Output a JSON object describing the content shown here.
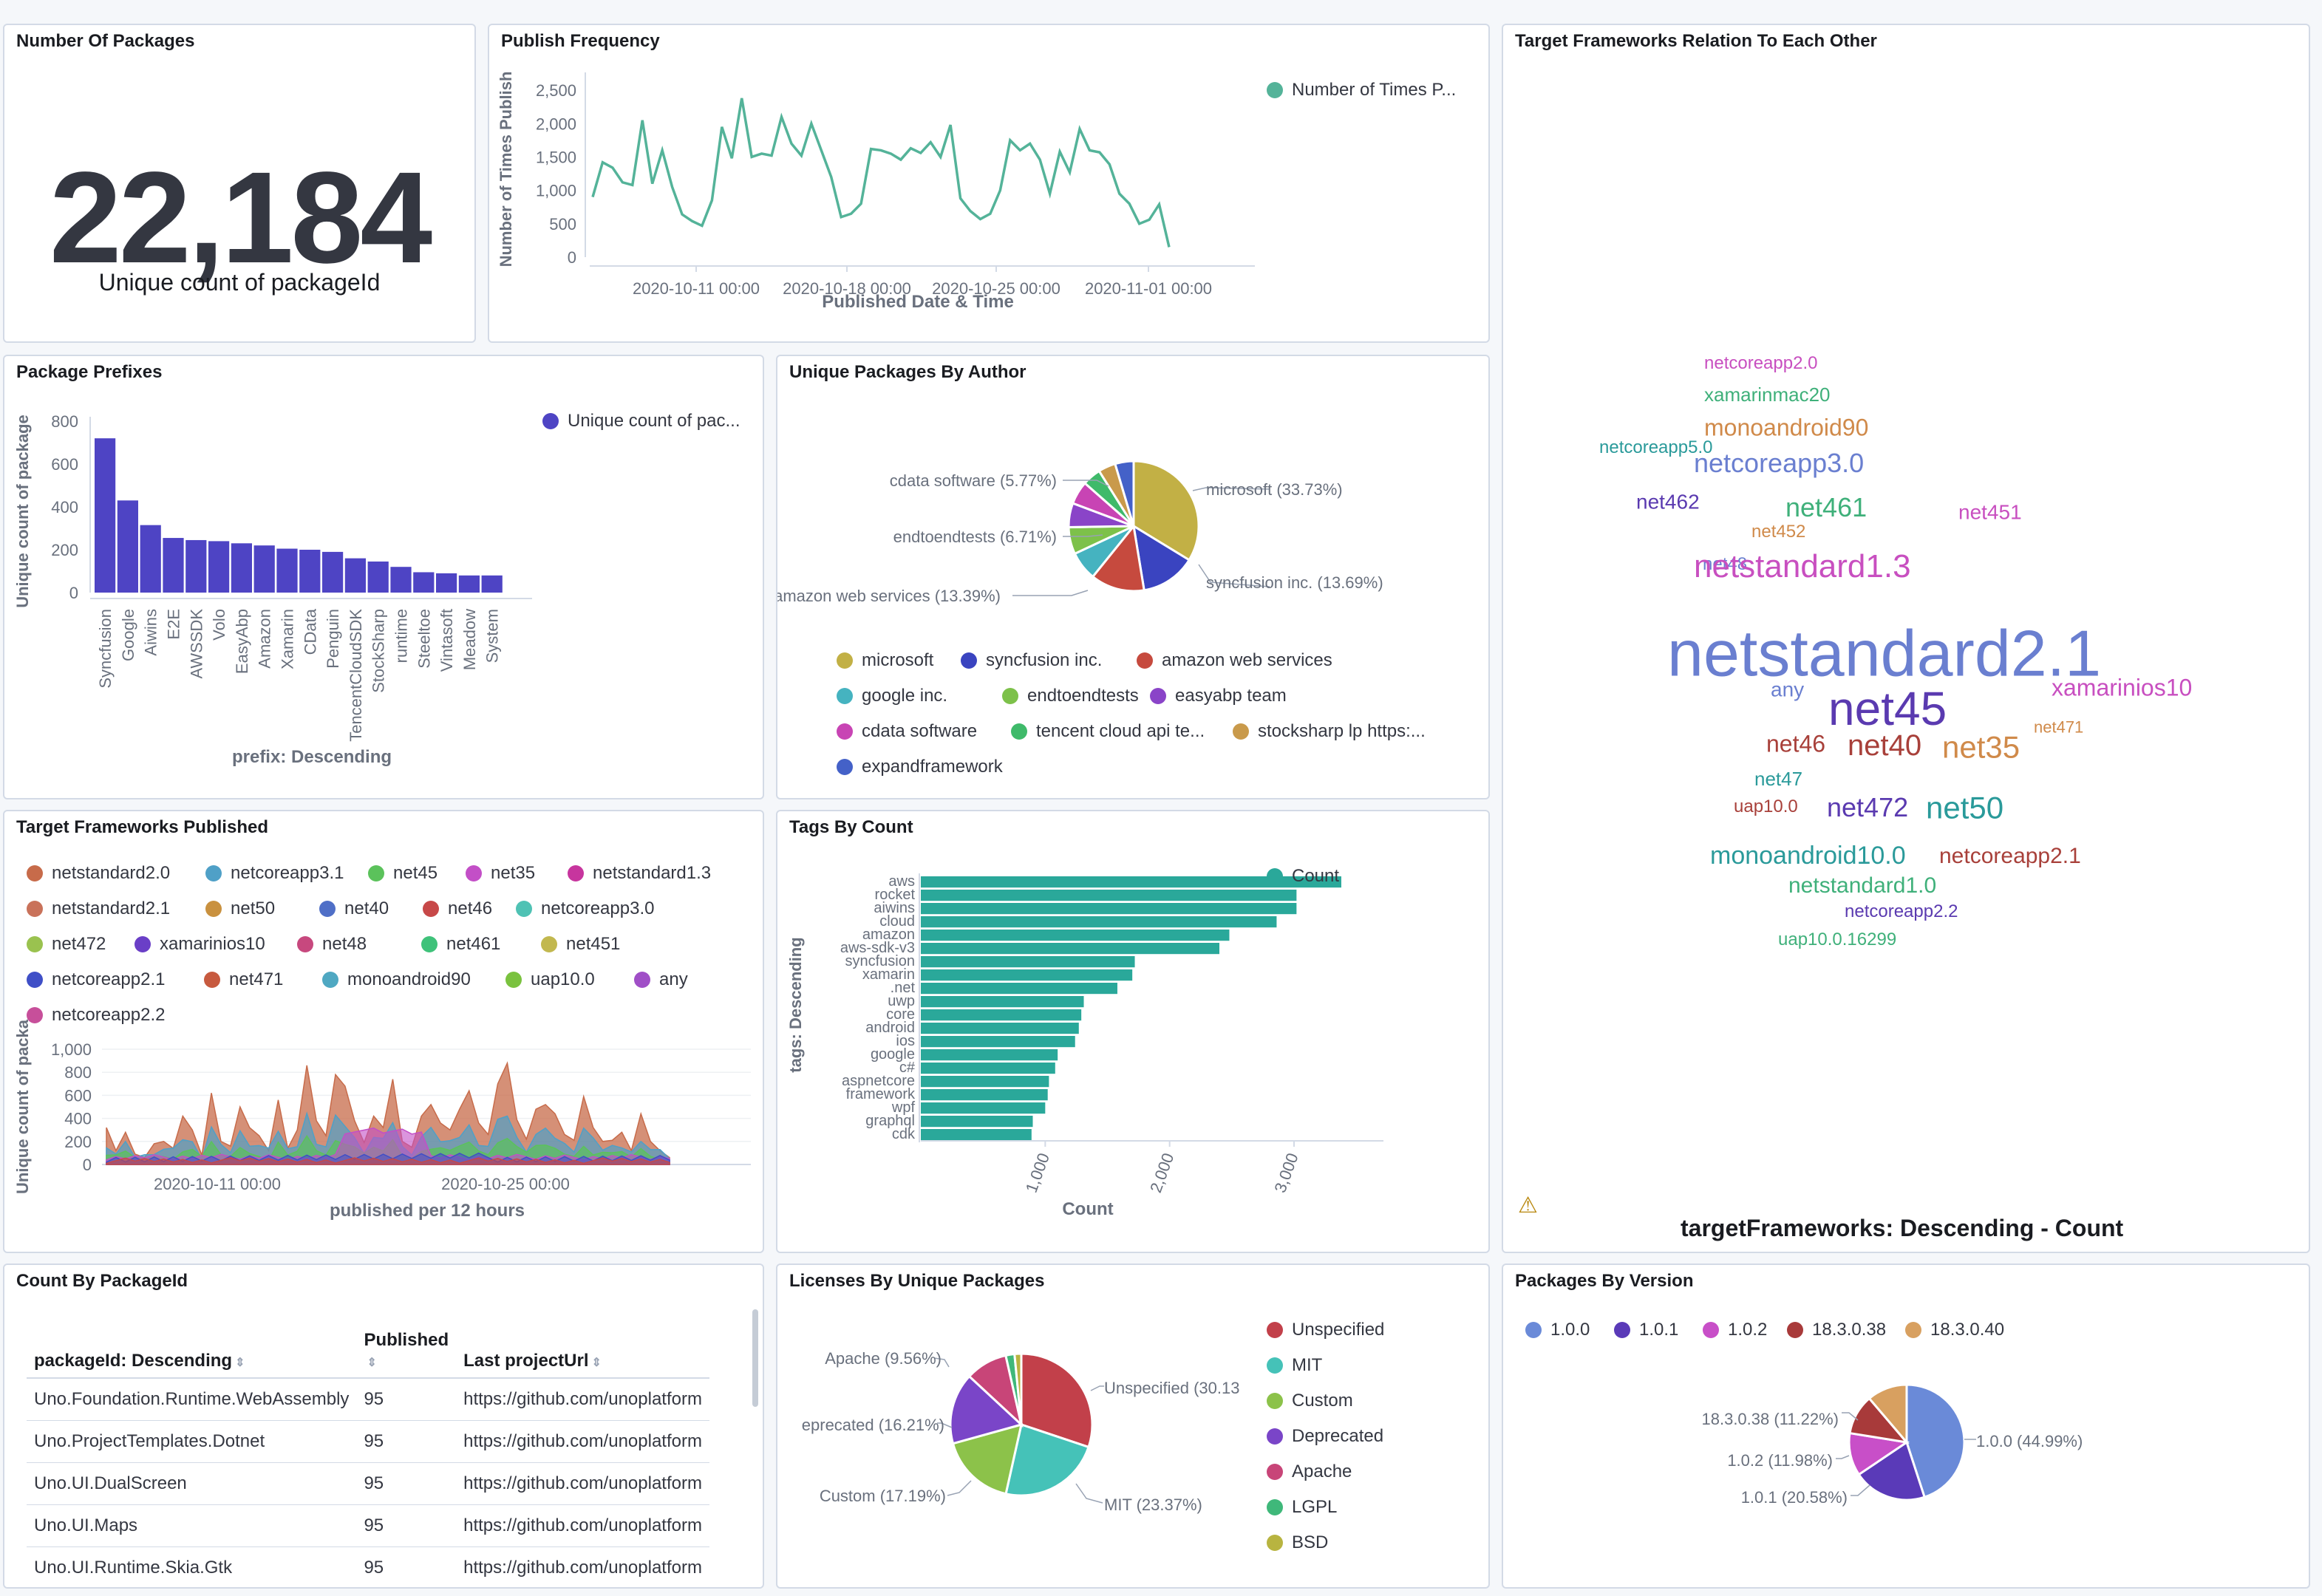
{
  "metric": {
    "title": "Number Of Packages",
    "value": "22,184",
    "label": "Unique count of packageId"
  },
  "publish": {
    "title": "Publish Frequency",
    "legend": "Number of Times P...",
    "ylabel": "Number of Times Publish",
    "xlabel": "Published Date & Time",
    "yticks": [
      "0",
      "500",
      "1,000",
      "1,500",
      "2,000",
      "2,500"
    ],
    "xticks": [
      "2020-10-11 00:00",
      "2020-10-18 00:00",
      "2020-10-25 00:00",
      "2020-11-01 00:00"
    ],
    "color": "#54b399"
  },
  "prefixes": {
    "title": "Package Prefixes",
    "legend": "Unique count of pac...",
    "ylabel": "Unique count of package",
    "xlabel": "prefix: Descending",
    "yticks": [
      "0",
      "200",
      "400",
      "600",
      "800"
    ],
    "color": "#4e44c4"
  },
  "author": {
    "title": "Unique Packages By Author",
    "labels": [
      {
        "text": "microsoft (33.73%)"
      },
      {
        "text": "syncfusion inc. (13.69%)"
      },
      {
        "text": "amazon web services (13.39%)"
      },
      {
        "text": "endtoendtests (6.71%)"
      },
      {
        "text": "cdata software (5.77%)"
      }
    ],
    "legend": [
      {
        "label": "microsoft",
        "color": "#c2b045"
      },
      {
        "label": "syncfusion inc.",
        "color": "#3a44c0"
      },
      {
        "label": "amazon web services",
        "color": "#c64a3e"
      },
      {
        "label": "google inc.",
        "color": "#45b3c0"
      },
      {
        "label": "endtoendtests",
        "color": "#7dc14a"
      },
      {
        "label": "easyabp team",
        "color": "#8a44c8"
      },
      {
        "label": "cdata software",
        "color": "#c844b4"
      },
      {
        "label": "tencent cloud api te...",
        "color": "#3fba6a"
      },
      {
        "label": "stocksharp lp https:...",
        "color": "#c99a4b"
      },
      {
        "label": "expandframework",
        "color": "#4461c8"
      }
    ]
  },
  "frameworks": {
    "title": "Target Frameworks Published",
    "ylabel": "Unique count of packa",
    "xlabel": "published per 12 hours",
    "yticks": [
      "0",
      "200",
      "400",
      "600",
      "800",
      "1,000"
    ],
    "xticks": [
      "2020-10-11 00:00",
      "2020-10-25 00:00"
    ],
    "legend": [
      {
        "label": "netstandard2.0",
        "color": "#c76b4a"
      },
      {
        "label": "netcoreapp3.1",
        "color": "#4fa0c7"
      },
      {
        "label": "net45",
        "color": "#5bc25b"
      },
      {
        "label": "net35",
        "color": "#c34fc7"
      },
      {
        "label": "netstandard1.3",
        "color": "#c7359e"
      },
      {
        "label": "netstandard2.1",
        "color": "#c9725a"
      },
      {
        "label": "net50",
        "color": "#c9913f"
      },
      {
        "label": "net40",
        "color": "#4f6fc7"
      },
      {
        "label": "net46",
        "color": "#c74848"
      },
      {
        "label": "netcoreapp3.0",
        "color": "#4fc2b4"
      },
      {
        "label": "net472",
        "color": "#9ac24f"
      },
      {
        "label": "xamarinios10",
        "color": "#6a3fc7"
      },
      {
        "label": "net48",
        "color": "#c7487e"
      },
      {
        "label": "net461",
        "color": "#3fc27a"
      },
      {
        "label": "net451",
        "color": "#c2b84f"
      },
      {
        "label": "netcoreapp2.1",
        "color": "#3f4fc7"
      },
      {
        "label": "net471",
        "color": "#c75a3f"
      },
      {
        "label": "monoandroid90",
        "color": "#4fa8c2"
      },
      {
        "label": "uap10.0",
        "color": "#7ac23f"
      },
      {
        "label": "any",
        "color": "#a04fc7"
      },
      {
        "label": "netcoreapp2.2",
        "color": "#c74f9a"
      }
    ]
  },
  "tags": {
    "title": "Tags By Count",
    "legend": "Count",
    "ylabel": "tags: Descending",
    "xlabel": "Count",
    "color": "#2aa89a",
    "xticks": [
      "1,000",
      "2,000",
      "3,000"
    ]
  },
  "wordcloud": {
    "title": "Target Frameworks Relation To Each Other",
    "footer": "targetFrameworks: Descending - Count",
    "words": [
      {
        "text": "netcoreapp2.0",
        "color": "#c84fc0"
      },
      {
        "text": "xamarinmac20",
        "color": "#3fb07a"
      },
      {
        "text": "monoandroid90",
        "color": "#d08a4a"
      },
      {
        "text": "netcoreapp5.0",
        "color": "#2a9a9a"
      },
      {
        "text": "netcoreapp3.0",
        "color": "#6a7fd0"
      },
      {
        "text": "net462",
        "color": "#5a3ab0"
      },
      {
        "text": "net461",
        "color": "#3fb07a"
      },
      {
        "text": "net451",
        "color": "#c84fc0"
      },
      {
        "text": "net452",
        "color": "#d08a4a"
      },
      {
        "text": "net48",
        "color": "#6a7fd0"
      },
      {
        "text": "netstandard1.3",
        "color": "#c84fc0"
      },
      {
        "text": "netstandard2.1",
        "color": "#6a7fd0"
      },
      {
        "text": "any",
        "color": "#6a7fd0"
      },
      {
        "text": "net45",
        "color": "#5a3ab0"
      },
      {
        "text": "xamarinios10",
        "color": "#c84fc0"
      },
      {
        "text": "net471",
        "color": "#d08a4a"
      },
      {
        "text": "net46",
        "color": "#a8403a"
      },
      {
        "text": "net40",
        "color": "#a8403a"
      },
      {
        "text": "net35",
        "color": "#d08a4a"
      },
      {
        "text": "net47",
        "color": "#2a9a9a"
      },
      {
        "text": "uap10.0",
        "color": "#a8403a"
      },
      {
        "text": "net472",
        "color": "#5a3ab0"
      },
      {
        "text": "net50",
        "color": "#2a9a9a"
      },
      {
        "text": "monoandroid10.0",
        "color": "#2a9a9a"
      },
      {
        "text": "netcoreapp2.1",
        "color": "#a8403a"
      },
      {
        "text": "netstandard1.0",
        "color": "#3fb07a"
      },
      {
        "text": "netcoreapp2.2",
        "color": "#5a3ab0"
      },
      {
        "text": "uap10.0.16299",
        "color": "#3fb07a"
      }
    ]
  },
  "countpkg": {
    "title": "Count By PackageId",
    "headers": {
      "id": "packageId: Descending",
      "published": "Published",
      "url": "Last projectUrl"
    },
    "rows": [
      {
        "id": "Uno.Foundation.Runtime.WebAssembly",
        "published": "95",
        "url": "https://github.com/unoplatform"
      },
      {
        "id": "Uno.ProjectTemplates.Dotnet",
        "published": "95",
        "url": "https://github.com/unoplatform"
      },
      {
        "id": "Uno.UI.DualScreen",
        "published": "95",
        "url": "https://github.com/unoplatform"
      },
      {
        "id": "Uno.UI.Maps",
        "published": "95",
        "url": "https://github.com/unoplatform"
      },
      {
        "id": "Uno.UI.Runtime.Skia.Gtk",
        "published": "95",
        "url": "https://github.com/unoplatform"
      }
    ]
  },
  "licenses": {
    "title": "Licenses By Unique Packages",
    "labels": [
      {
        "text": "Apache (9.56%)"
      },
      {
        "text": "Unspecified (30.13"
      },
      {
        "text": "eprecated (16.21%)"
      },
      {
        "text": "Custom (17.19%)"
      },
      {
        "text": "MIT (23.37%)"
      }
    ],
    "legend": [
      {
        "label": "Unspecified",
        "color": "#c2404a"
      },
      {
        "label": "MIT",
        "color": "#45c2b8"
      },
      {
        "label": "Custom",
        "color": "#8cc24a"
      },
      {
        "label": "Deprecated",
        "color": "#7a45c8"
      },
      {
        "label": "Apache",
        "color": "#c84578"
      },
      {
        "label": "LGPL",
        "color": "#3fb87a"
      },
      {
        "label": "BSD",
        "color": "#b8b440"
      }
    ]
  },
  "versions": {
    "title": "Packages By Version",
    "labels": [
      {
        "text": "18.3.0.38 (11.22%)"
      },
      {
        "text": "1.0.0 (44.99%)"
      },
      {
        "text": "1.0.2 (11.98%)"
      },
      {
        "text": "1.0.1 (20.58%)"
      }
    ],
    "legend": [
      {
        "label": "1.0.0",
        "color": "#6a8ad8"
      },
      {
        "label": "1.0.1",
        "color": "#5a3ab8"
      },
      {
        "label": "1.0.2",
        "color": "#c84fc8"
      },
      {
        "label": "18.3.0.38",
        "color": "#a83a3a"
      },
      {
        "label": "18.3.0.40",
        "color": "#d8a060"
      }
    ]
  },
  "chart_data": [
    {
      "type": "line",
      "title": "Publish Frequency",
      "xlabel": "Published Date & Time",
      "ylabel": "Number of Times Publish",
      "ylim": [
        0,
        2700
      ],
      "series": [
        {
          "name": "Number of Times P...",
          "values": [
            900,
            1420,
            1340,
            1120,
            1080,
            2050,
            1100,
            1600,
            1050,
            640,
            540,
            470,
            850,
            1950,
            1480,
            2380,
            1500,
            1550,
            1520,
            2100,
            1700,
            1520,
            2000,
            1600,
            1200,
            600,
            650,
            800,
            1620,
            1600,
            1550,
            1460,
            1630,
            1560,
            1720,
            1500,
            1980,
            880,
            690,
            570,
            650,
            1000,
            1750,
            1600,
            1700,
            1460,
            950,
            1580,
            1270,
            1920,
            1600,
            1570,
            1390,
            950,
            800,
            500,
            560,
            790,
            150
          ]
        }
      ]
    },
    {
      "type": "bar",
      "title": "Package Prefixes",
      "xlabel": "prefix: Descending",
      "ylabel": "Unique count of package",
      "ylim": [
        0,
        800
      ],
      "categories": [
        "Syncfusion",
        "Google",
        "Aiwins",
        "E2E",
        "AWSSDK",
        "Volo",
        "EasyAbp",
        "Amazon",
        "Xamarin",
        "CData",
        "Penguin",
        "TencentCloudSDK",
        "StockSharp",
        "runtime",
        "Steeltoe",
        "Vintasoft",
        "Meadow",
        "System"
      ],
      "values": [
        720,
        430,
        315,
        255,
        245,
        240,
        230,
        220,
        205,
        200,
        190,
        160,
        145,
        120,
        95,
        90,
        80,
        80
      ]
    },
    {
      "type": "pie",
      "title": "Unique Packages By Author",
      "categories": [
        "microsoft",
        "syncfusion inc.",
        "amazon web services",
        "google inc.",
        "endtoendtests",
        "easyabp team",
        "cdata software",
        "tencent cloud api te...",
        "stocksharp lp https:...",
        "expandframework"
      ],
      "values": [
        33.73,
        13.69,
        13.39,
        7.2,
        6.71,
        6.0,
        5.77,
        4.6,
        4.3,
        4.61
      ]
    },
    {
      "type": "area",
      "title": "Target Frameworks Published",
      "xlabel": "published per 12 hours",
      "ylabel": "Unique count of packa",
      "ylim": [
        0,
        1000
      ]
    },
    {
      "type": "bar",
      "title": "Tags By Count",
      "xlabel": "Count",
      "ylabel": "tags: Descending",
      "categories": [
        "aws",
        "rocket",
        "aiwins",
        "cloud",
        "amazon",
        "aws-sdk-v3",
        "syncfusion",
        "xamarin",
        ".net",
        "uwp",
        "core",
        "android",
        "ios",
        "google",
        "c#",
        "aspnetcore",
        "framework",
        "wpf",
        "graphql",
        "cdk"
      ],
      "values": [
        3380,
        3020,
        3020,
        2860,
        2480,
        2400,
        1720,
        1700,
        1580,
        1310,
        1290,
        1270,
        1240,
        1100,
        1080,
        1030,
        1020,
        1000,
        900,
        890
      ]
    },
    {
      "type": "pie",
      "title": "Licenses By Unique Packages",
      "categories": [
        "Unspecified",
        "MIT",
        "Custom",
        "Deprecated",
        "Apache",
        "LGPL",
        "BSD"
      ],
      "values": [
        30.13,
        23.37,
        17.19,
        16.21,
        9.56,
        2.0,
        1.54
      ]
    },
    {
      "type": "pie",
      "title": "Packages By Version",
      "categories": [
        "1.0.0",
        "1.0.1",
        "1.0.2",
        "18.3.0.38",
        "18.3.0.40"
      ],
      "values": [
        44.99,
        20.58,
        11.98,
        11.22,
        11.23
      ]
    }
  ]
}
